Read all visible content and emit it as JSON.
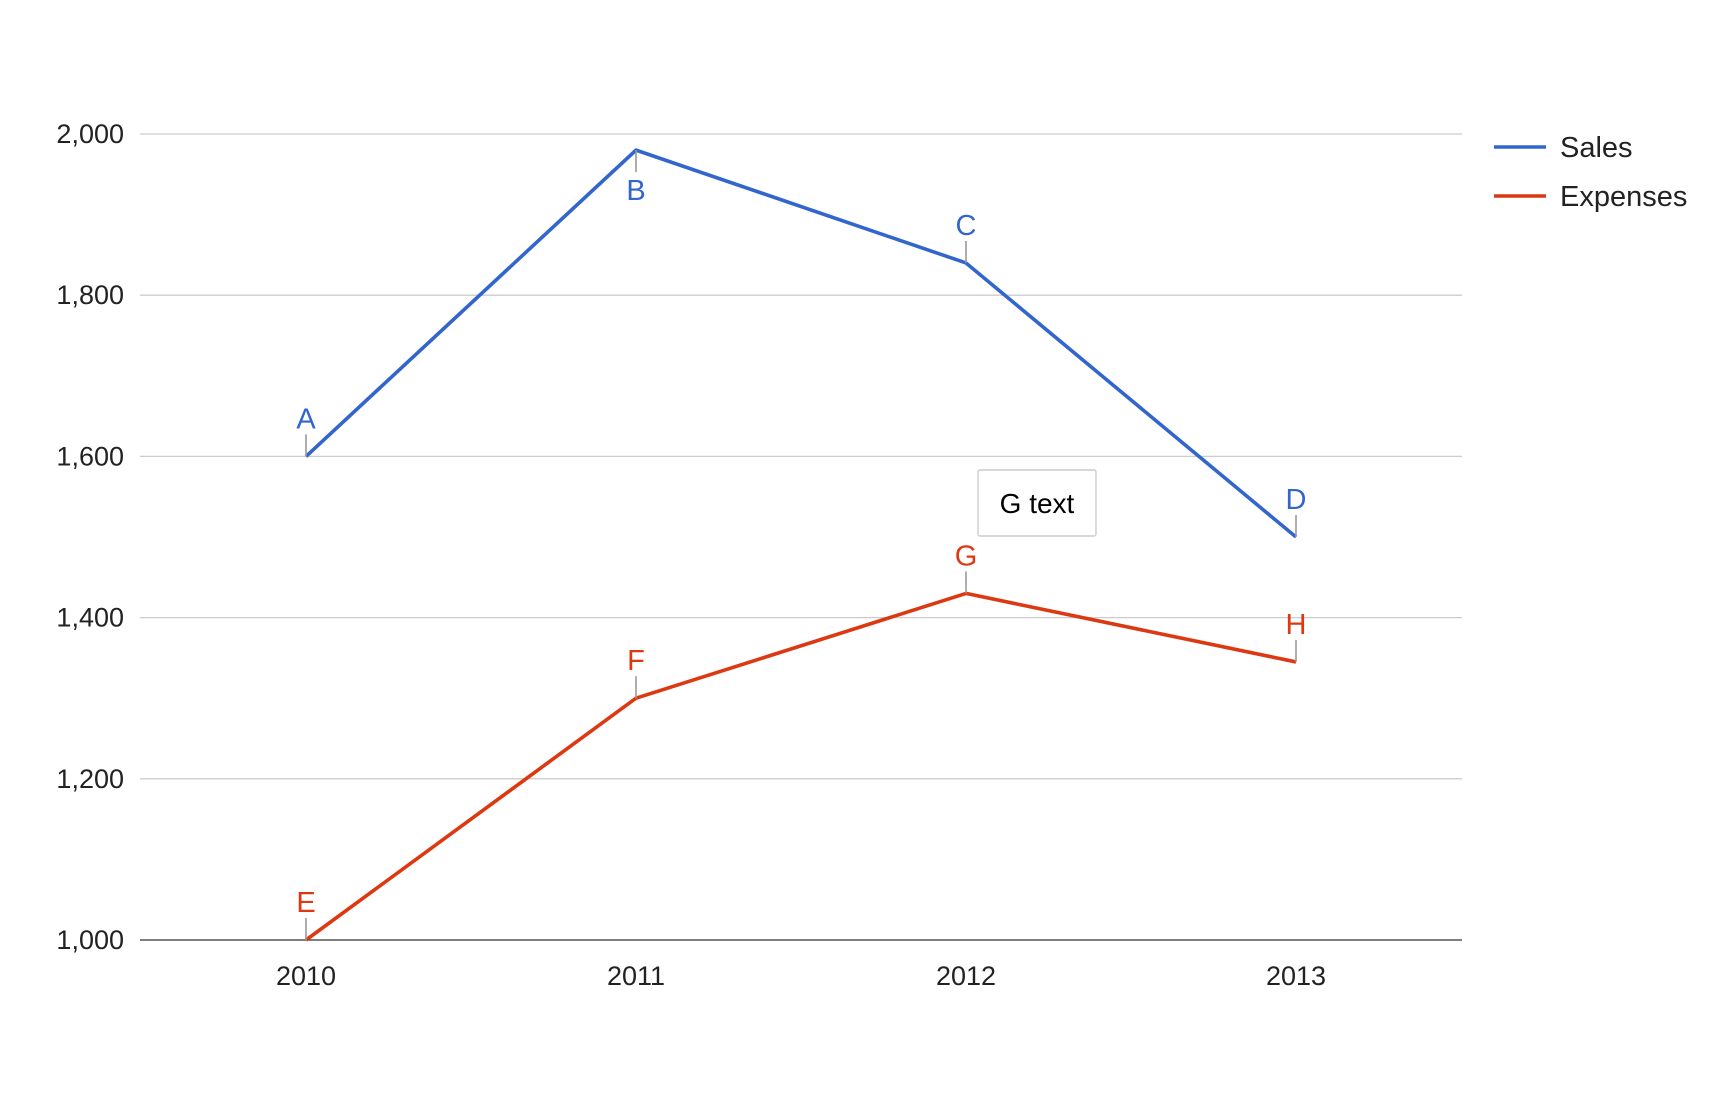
{
  "chart_data": {
    "type": "line",
    "title": "",
    "xlabel": "",
    "ylabel": "",
    "categories": [
      "2010",
      "2011",
      "2012",
      "2013"
    ],
    "ylim": [
      1000,
      2000
    ],
    "yticks": [
      1000,
      1200,
      1400,
      1600,
      1800,
      2000
    ],
    "ytick_labels": [
      "1,000",
      "1,200",
      "1,400",
      "1,600",
      "1,800",
      "2,000"
    ],
    "grid": true,
    "legend_position": "right",
    "series": [
      {
        "name": "Sales",
        "color": "#3366cc",
        "values": [
          1600,
          1980,
          1840,
          1500
        ],
        "annotations": [
          "A",
          "B",
          "C",
          "D"
        ],
        "annotation_side": [
          "above",
          "below",
          "above",
          "above"
        ]
      },
      {
        "name": "Expenses",
        "color": "#dc3912",
        "values": [
          1000,
          1300,
          1430,
          1345
        ],
        "annotations": [
          "E",
          "F",
          "G",
          "H"
        ],
        "annotation_side": [
          "above",
          "above",
          "above",
          "above"
        ]
      }
    ],
    "tooltip": {
      "text": "G text",
      "series": 1,
      "point": 2
    }
  }
}
